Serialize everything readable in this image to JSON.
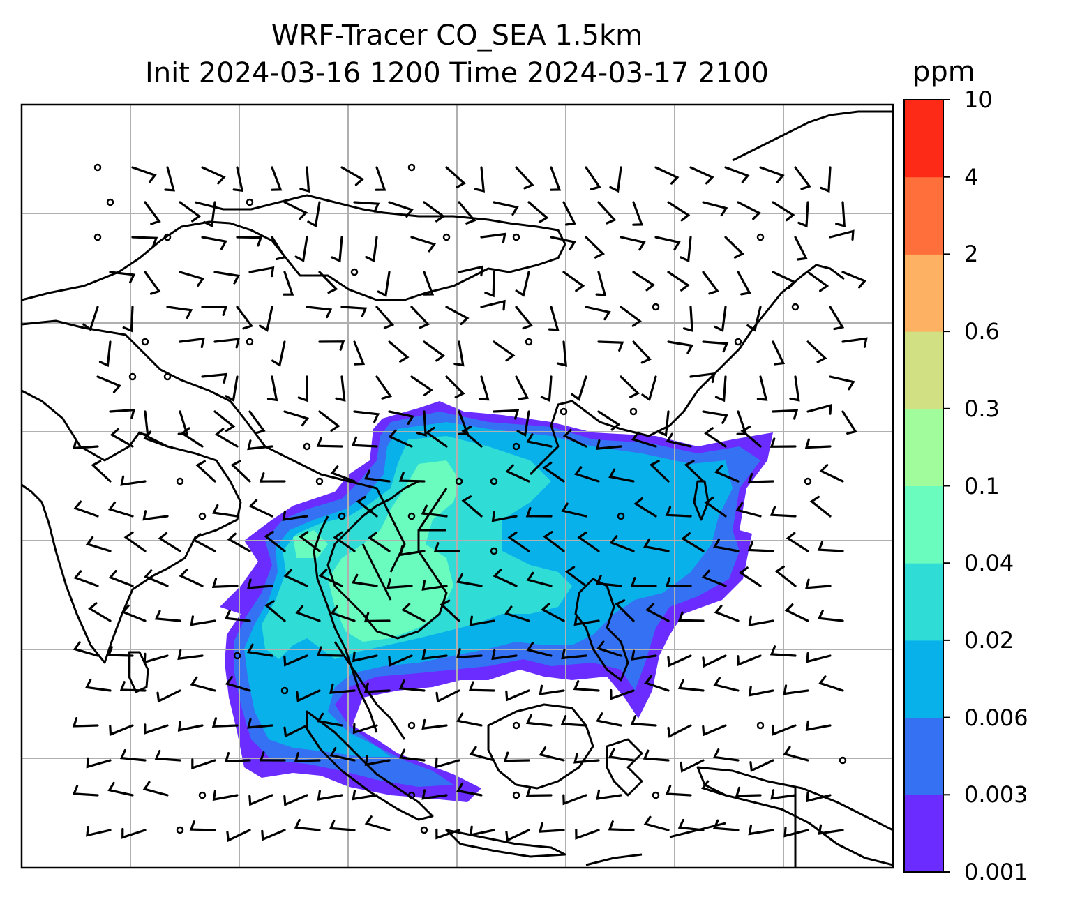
{
  "title": {
    "line1": "WRF-Tracer CO_SEA 1.5km",
    "line2": "Init 2024-03-16 1200 Time 2024-03-17 2100"
  },
  "colorbar": {
    "unit": "ppm",
    "levels": [
      "0.001",
      "0.003",
      "0.006",
      "0.02",
      "0.04",
      "0.1",
      "0.3",
      "0.6",
      "2",
      "4",
      "10"
    ],
    "colors": [
      "#6a2cff",
      "#3472f3",
      "#08b1ea",
      "#2fdcd6",
      "#6afcbf",
      "#a1fc9c",
      "#d0e083",
      "#fdb263",
      "#fe6f3b",
      "#fd2a18"
    ]
  },
  "map": {
    "gridline_color": "#b0b0b0",
    "coastline_color": "#000000",
    "barb_color": "#000000"
  }
}
